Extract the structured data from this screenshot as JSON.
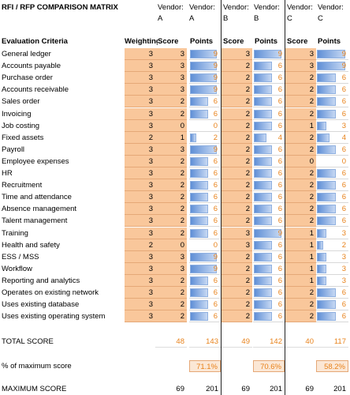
{
  "title": "RFI / RFP COMPARISON MATRIX",
  "vendor_headers": [
    {
      "line1": "Vendor:",
      "line2": "A"
    },
    {
      "line1": "Vendor:",
      "line2": "A"
    },
    {
      "line1": "Vendor:",
      "line2": "B"
    },
    {
      "line1": "Vendor:",
      "line2": "B"
    },
    {
      "line1": "Vendor:",
      "line2": "C"
    },
    {
      "line1": "Vendor:",
      "line2": "C"
    }
  ],
  "columns": {
    "criteria": "Evaluation Criteria",
    "weight": "Weighting",
    "score_a": "Score",
    "points_a": "Points",
    "score_b": "Score",
    "points_b": "Points",
    "score_c": "Score",
    "points_c": "Points"
  },
  "max_points": 9,
  "rows": [
    {
      "c": "General ledger",
      "w": "3",
      "sa": "3",
      "pa": "9",
      "sb": "3",
      "pb": "9",
      "sc": "3",
      "pc": "9"
    },
    {
      "c": "Accounts payable",
      "w": "3",
      "sa": "3",
      "pa": "9",
      "sb": "2",
      "pb": "6",
      "sc": "3",
      "pc": "9"
    },
    {
      "c": "Purchase order",
      "w": "3",
      "sa": "3",
      "pa": "9",
      "sb": "2",
      "pb": "6",
      "sc": "2",
      "pc": "6"
    },
    {
      "c": "Accounts receivable",
      "w": "3",
      "sa": "3",
      "pa": "9",
      "sb": "2",
      "pb": "6",
      "sc": "2",
      "pc": "6"
    },
    {
      "c": "Sales order",
      "w": "3",
      "sa": "2",
      "pa": "6",
      "sb": "2",
      "pb": "6",
      "sc": "2",
      "pc": "6"
    },
    {
      "c": "Invoicing",
      "w": "3",
      "sa": "2",
      "pa": "6",
      "sb": "2",
      "pb": "6",
      "sc": "2",
      "pc": "6"
    },
    {
      "c": "Job costing",
      "w": "3",
      "sa": "0",
      "pa": "0",
      "sb": "2",
      "pb": "6",
      "sc": "1",
      "pc": "3"
    },
    {
      "c": "Fixed assets",
      "w": "2",
      "sa": "1",
      "pa": "2",
      "sb": "2",
      "pb": "4",
      "sc": "2",
      "pc": "4"
    },
    {
      "c": "Payroll",
      "w": "3",
      "sa": "3",
      "pa": "9",
      "sb": "2",
      "pb": "6",
      "sc": "2",
      "pc": "6"
    },
    {
      "c": "Employee expenses",
      "w": "3",
      "sa": "2",
      "pa": "6",
      "sb": "2",
      "pb": "6",
      "sc": "0",
      "pc": "0"
    },
    {
      "c": "HR",
      "w": "3",
      "sa": "2",
      "pa": "6",
      "sb": "2",
      "pb": "6",
      "sc": "2",
      "pc": "6"
    },
    {
      "c": "Recruitment",
      "w": "3",
      "sa": "2",
      "pa": "6",
      "sb": "2",
      "pb": "6",
      "sc": "2",
      "pc": "6"
    },
    {
      "c": "Time and attendance",
      "w": "3",
      "sa": "2",
      "pa": "6",
      "sb": "2",
      "pb": "6",
      "sc": "2",
      "pc": "6"
    },
    {
      "c": "Absence management",
      "w": "3",
      "sa": "2",
      "pa": "6",
      "sb": "2",
      "pb": "6",
      "sc": "2",
      "pc": "6"
    },
    {
      "c": "Talent management",
      "w": "3",
      "sa": "2",
      "pa": "6",
      "sb": "2",
      "pb": "6",
      "sc": "2",
      "pc": "6"
    },
    {
      "c": "Training",
      "w": "3",
      "sa": "2",
      "pa": "6",
      "sb": "3",
      "pb": "9",
      "sc": "1",
      "pc": "3"
    },
    {
      "c": "Health and safety",
      "w": "2",
      "sa": "0",
      "pa": "0",
      "sb": "3",
      "pb": "6",
      "sc": "1",
      "pc": "2"
    },
    {
      "c": "ESS / MSS",
      "w": "3",
      "sa": "3",
      "pa": "9",
      "sb": "2",
      "pb": "6",
      "sc": "1",
      "pc": "3"
    },
    {
      "c": "Workflow",
      "w": "3",
      "sa": "3",
      "pa": "9",
      "sb": "2",
      "pb": "6",
      "sc": "1",
      "pc": "3"
    },
    {
      "c": "Reporting and analytics",
      "w": "3",
      "sa": "2",
      "pa": "6",
      "sb": "2",
      "pb": "6",
      "sc": "1",
      "pc": "3"
    },
    {
      "c": "Operates on existing network",
      "w": "3",
      "sa": "2",
      "pa": "6",
      "sb": "2",
      "pb": "6",
      "sc": "2",
      "pc": "6"
    },
    {
      "c": "Uses existing database",
      "w": "3",
      "sa": "2",
      "pa": "6",
      "sb": "2",
      "pb": "6",
      "sc": "2",
      "pc": "6"
    },
    {
      "c": "Uses existing operating system",
      "w": "3",
      "sa": "2",
      "pa": "6",
      "sb": "2",
      "pb": "6",
      "sc": "2",
      "pc": "6"
    }
  ],
  "total": {
    "label": "TOTAL SCORE",
    "sa": "48",
    "pa": "143",
    "sb": "49",
    "pb": "142",
    "sc": "40",
    "pc": "117"
  },
  "percent": {
    "label": "% of maximum score",
    "pa": "71.1%",
    "pb": "70.6%",
    "pc": "58.2%"
  },
  "maximum": {
    "label": "MAXIMUM SCORE",
    "sa": "69",
    "pa": "201",
    "sb": "69",
    "pb": "201",
    "sc": "69",
    "pc": "201"
  }
}
